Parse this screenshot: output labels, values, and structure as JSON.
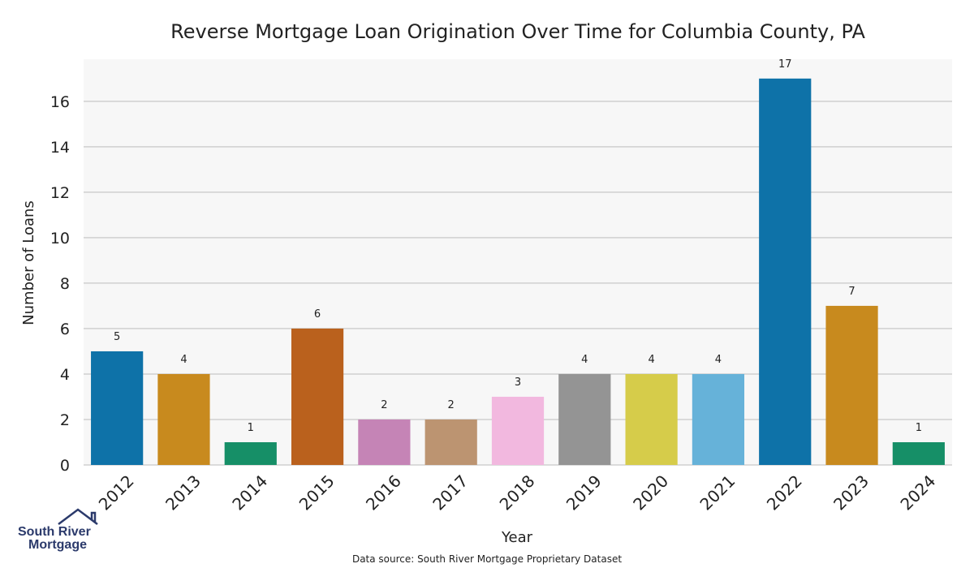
{
  "chart_data": {
    "type": "bar",
    "title": "Reverse Mortgage Loan Origination Over Time for Columbia County, PA",
    "xlabel": "Year",
    "ylabel": "Number of Loans",
    "categories": [
      "2012",
      "2013",
      "2014",
      "2015",
      "2016",
      "2017",
      "2018",
      "2019",
      "2020",
      "2021",
      "2022",
      "2023",
      "2024"
    ],
    "values": [
      5,
      4,
      1,
      6,
      2,
      2,
      3,
      4,
      4,
      4,
      17,
      7,
      1
    ],
    "colors": [
      "#0e72a8",
      "#c88a1e",
      "#168f67",
      "#ba611d",
      "#c584b6",
      "#bc9471",
      "#f2b8df",
      "#949494",
      "#d6cc4a",
      "#66b2d9",
      "#0e72a8",
      "#c88a1e",
      "#168f67"
    ],
    "yticks": [
      0,
      2,
      4,
      6,
      8,
      10,
      12,
      14,
      16
    ],
    "ylim": [
      0,
      17.85
    ],
    "grid": true,
    "legend": "none",
    "plot_background": "#f7f7f7",
    "grid_color": "#d0d0d0"
  },
  "footer": {
    "source": "Data source: South River Mortgage Proprietary Dataset"
  },
  "logo": {
    "line1": "South River",
    "line2": "Mortgage"
  }
}
